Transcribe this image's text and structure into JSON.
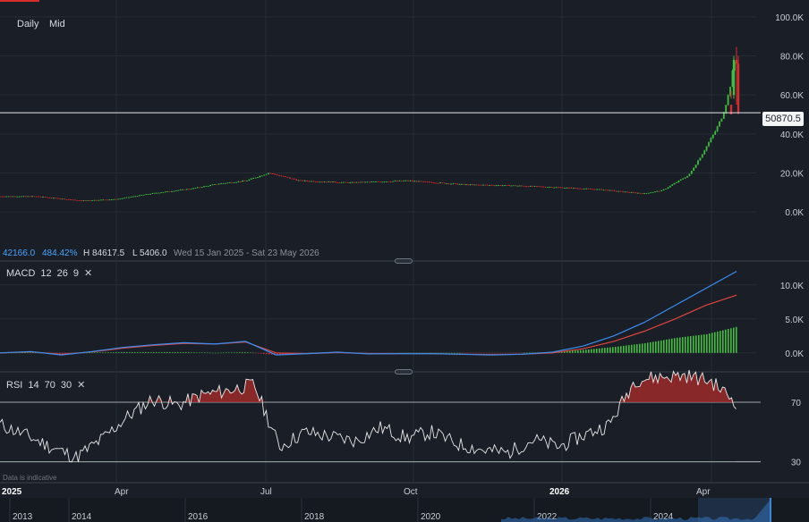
{
  "toolbar": {
    "interval": "Daily",
    "price_type": "Mid"
  },
  "stats": {
    "change": "42166.0",
    "change_pct": "484.42%",
    "high": "H 84617.5",
    "low": "L 5406.0",
    "range": "Wed 15 Jan 2025 - Sat 23 May 2026"
  },
  "current_price_label": "50870.5",
  "indicators": {
    "macd": {
      "name": "MACD",
      "fast": "12",
      "slow": "26",
      "signal": "9"
    },
    "rsi": {
      "name": "RSI",
      "period": "14",
      "upper": "70",
      "lower": "30"
    }
  },
  "disclaimer": "Data is indicative",
  "colors": {
    "background": "#1a1f27",
    "up": "#3fbf3f",
    "down": "#d62c2c",
    "macd_line": "#3b8df0",
    "signal_line": "#e0443c",
    "rsi_line": "#e8e8e8",
    "rsi_fill": "#9e2a2a"
  },
  "chart_data": [
    {
      "type": "candlestick",
      "title": "",
      "y_ticks": [
        "0.0K",
        "20.0K",
        "40.0K",
        "60.0K",
        "80.0K",
        "100.0K"
      ],
      "ylim": [
        -5000,
        105000
      ],
      "current_price": 50870.5,
      "x_ticks": [
        "2025",
        "Apr",
        "Jul",
        "Oct",
        "2026",
        "Apr"
      ],
      "series": [
        {
          "x": [
            "2025-01-15",
            "2025-02-15",
            "2025-03-15",
            "2025-04-15",
            "2025-05-15",
            "2025-06-10",
            "2025-06-25",
            "2025-07-10",
            "2025-07-20",
            "2025-08-01",
            "2025-09-01",
            "2025-10-01",
            "2025-11-01",
            "2025-12-01",
            "2026-01-01",
            "2026-02-01",
            "2026-02-15",
            "2026-03-01",
            "2026-03-15",
            "2026-04-01",
            "2026-04-10",
            "2026-04-20",
            "2026-04-28",
            "2026-05-05",
            "2026-05-12",
            "2026-05-18",
            "2026-05-23"
          ],
          "y": [
            8000,
            8000,
            5800,
            6500,
            9500,
            12000,
            14500,
            16000,
            20000,
            16000,
            15000,
            16000,
            14000,
            13500,
            12500,
            11500,
            10000,
            9500,
            11000,
            19000,
            30000,
            42000,
            50000,
            62000,
            76000,
            80000,
            50870.5
          ]
        }
      ]
    },
    {
      "type": "line",
      "title": "MACD",
      "y_ticks": [
        "0.0K",
        "5.0K",
        "10.0K"
      ],
      "ylim": [
        -2000,
        13000
      ],
      "series": [
        {
          "name": "MACD",
          "y": [
            0,
            200,
            -300,
            200,
            800,
            1200,
            1500,
            1300,
            1700,
            -300,
            -100,
            100,
            -150,
            -100,
            -100,
            -200,
            -300,
            -200,
            100,
            1000,
            2500,
            4500,
            7000,
            9500,
            12000
          ]
        },
        {
          "name": "Signal",
          "y": [
            0,
            150,
            -200,
            150,
            700,
            1100,
            1400,
            1300,
            1600,
            0,
            -100,
            50,
            -100,
            -100,
            -100,
            -200,
            -250,
            -200,
            0,
            600,
            1700,
            3200,
            5000,
            7000,
            8500
          ]
        }
      ]
    },
    {
      "type": "line",
      "title": "RSI",
      "y_ticks": [
        "30",
        "70"
      ],
      "ylim": [
        22,
        88
      ],
      "series": [
        {
          "name": "RSI",
          "y": [
            55,
            48,
            40,
            33,
            45,
            60,
            72,
            68,
            75,
            78,
            82,
            40,
            50,
            47,
            44,
            53,
            46,
            50,
            42,
            38,
            36,
            45,
            40,
            48,
            55,
            85,
            87,
            88,
            84,
            70
          ]
        }
      ]
    }
  ]
}
